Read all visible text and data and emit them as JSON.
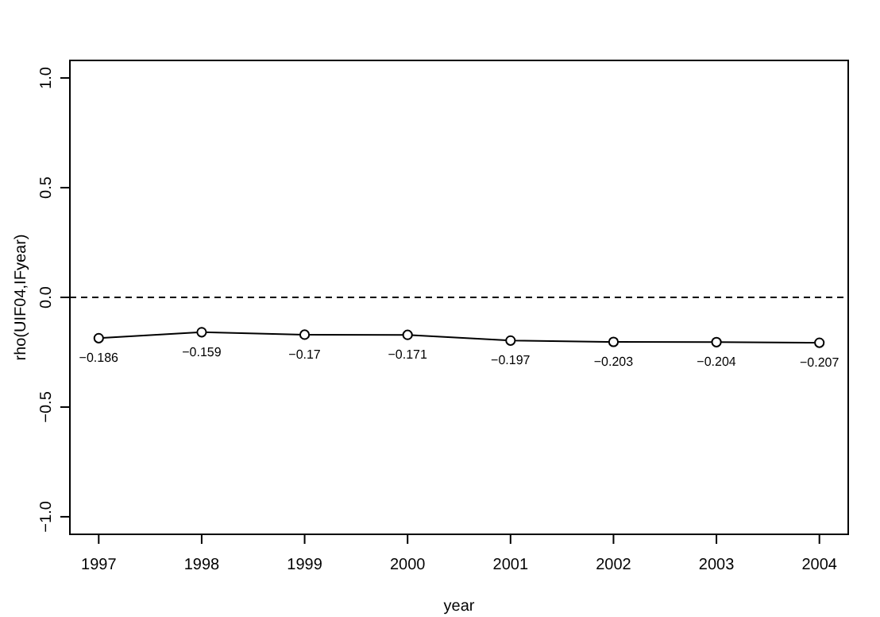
{
  "chart_data": {
    "type": "line",
    "xlabel": "year",
    "ylabel": "rho(UIF04,IFyear)",
    "x": [
      1997,
      1998,
      1999,
      2000,
      2001,
      2002,
      2003,
      2004
    ],
    "series": [
      {
        "color": "#000000",
        "values": [
          -0.186,
          -0.159,
          -0.17,
          -0.171,
          -0.197,
          -0.203,
          -0.204,
          -0.207
        ]
      }
    ],
    "xlim": [
      1996.72,
      2004.28
    ],
    "xticks": [
      1997,
      1998,
      1999,
      2000,
      2001,
      2002,
      2003,
      2004
    ],
    "ylim": [
      -1.08,
      1.08
    ],
    "yticks": [
      {
        "value": -1,
        "label": "−1.0"
      },
      {
        "value": -0.5,
        "label": "−0.5"
      },
      {
        "value": 0,
        "label": "0.0"
      },
      {
        "value": 0.5,
        "label": "0.5"
      },
      {
        "value": 1,
        "label": "1.0"
      }
    ],
    "ref_lines": [
      {
        "axis": "y",
        "value": 0,
        "line_style": "dashed"
      }
    ],
    "marker": "circle",
    "line_style": "solid",
    "data_labels": true
  }
}
